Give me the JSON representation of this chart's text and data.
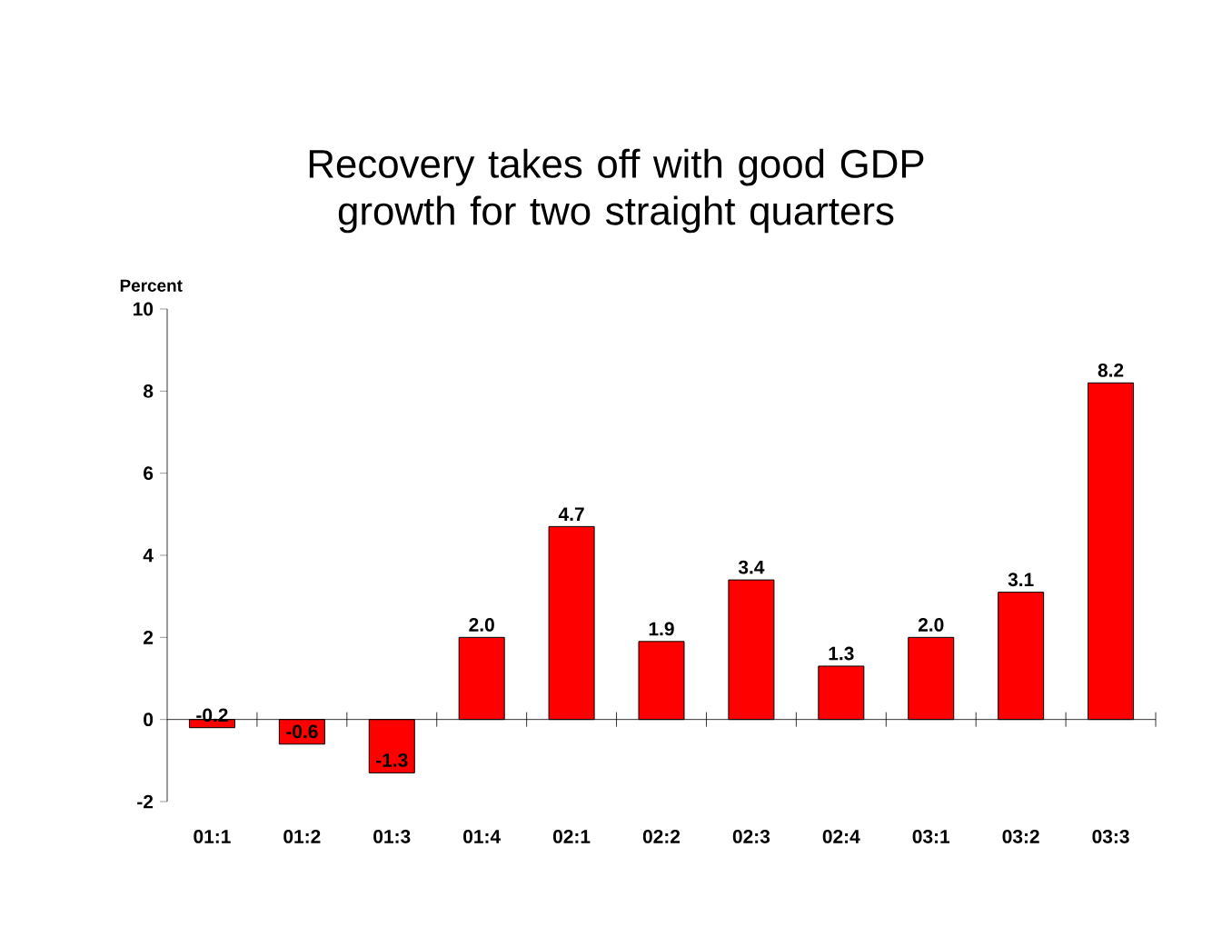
{
  "chart_data": {
    "type": "bar",
    "title": "Recovery takes off with good GDP growth for two straight quarters",
    "ylabel": "Percent",
    "categories": [
      "01:1",
      "01:2",
      "01:3",
      "01:4",
      "02:1",
      "02:2",
      "02:3",
      "02:4",
      "03:1",
      "03:2",
      "03:3"
    ],
    "values": [
      -0.2,
      -0.6,
      -1.3,
      2.0,
      4.7,
      1.9,
      3.4,
      1.3,
      2.0,
      3.1,
      8.2
    ],
    "value_labels": [
      "-0.2",
      "-0.6",
      "-1.3",
      "2.0",
      "4.7",
      "1.9",
      "3.4",
      "1.3",
      "2.0",
      "3.1",
      "8.2"
    ],
    "color": "#ff0000",
    "ylim": [
      -2,
      10
    ],
    "yticks": [
      -2,
      0,
      2,
      4,
      6,
      8,
      10
    ]
  }
}
